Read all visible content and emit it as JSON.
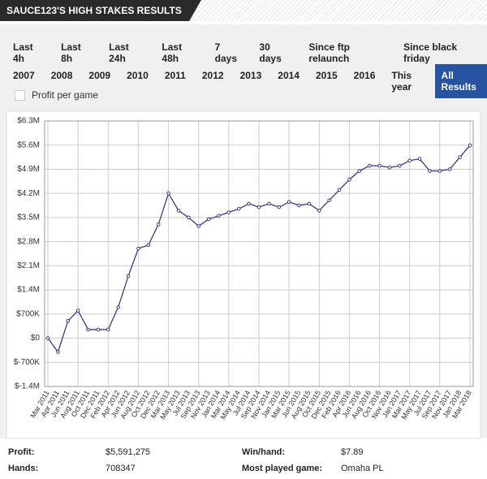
{
  "header": {
    "title": "SAUCE123'S HIGH STAKES RESULTS"
  },
  "filters": {
    "row1": [
      "Last 4h",
      "Last 8h",
      "Last 24h",
      "Last 48h",
      "7 days",
      "30 days",
      "Since ftp relaunch",
      "Since black friday"
    ],
    "row2": [
      "2007",
      "2008",
      "2009",
      "2010",
      "2011",
      "2012",
      "2013",
      "2014",
      "2015",
      "2016",
      "This year",
      "All Results"
    ],
    "checkbox": "Profit per game"
  },
  "chart_data": {
    "type": "line",
    "categories": [
      "Mar 2011",
      "Apr 2011",
      "Jun 2011",
      "Aug 2011",
      "Oct 2011",
      "Dec 2011",
      "Feb 2012",
      "Apr 2012",
      "Jun 2012",
      "Aug 2012",
      "Oct 2012",
      "Dec 2012",
      "Mar 2013",
      "May 2013",
      "Jul 2013",
      "Sep 2013",
      "Nov 2013",
      "Jan 2014",
      "Mar 2014",
      "May 2014",
      "Jul 2014",
      "Sep 2014",
      "Nov 2014",
      "Jan 2015",
      "Mar 2015",
      "Jun 2015",
      "Aug 2015",
      "Oct 2015",
      "Dec 2015",
      "Feb 2016",
      "Apr 2016",
      "Jun 2016",
      "Aug 2016",
      "Oct 2016",
      "Nov 2016",
      "Jan 2017",
      "Mar 2017",
      "May 2017",
      "Jul 2017",
      "Sep 2017",
      "Nov 2017",
      "Jan 2018",
      "Mar 2018"
    ],
    "series": [
      {
        "color": "#3b3b7e",
        "values": [
          0,
          -400000,
          500000,
          800000,
          250000,
          250000,
          250000,
          900000,
          1800000,
          2600000,
          2700000,
          3300000,
          4200000,
          3700000,
          3500000,
          3250000,
          3450000,
          3550000,
          3650000,
          3750000,
          3900000,
          3800000,
          3900000,
          3800000,
          3950000,
          3850000,
          3900000,
          3700000,
          4000000,
          4300000,
          4600000,
          4850000,
          5000000,
          5000000,
          4950000,
          5000000,
          5150000,
          5200000,
          4850000,
          4850000,
          4900000,
          5250000,
          5591275
        ]
      }
    ],
    "ylim": [
      -1400000,
      6300000
    ],
    "yticks": [
      {
        "value": -1400000,
        "label": "$-1.4M"
      },
      {
        "value": -700000,
        "label": "$-700K"
      },
      {
        "value": 0,
        "label": "$0"
      },
      {
        "value": 700000,
        "label": "$700K"
      },
      {
        "value": 1400000,
        "label": "$1.4M"
      },
      {
        "value": 2100000,
        "label": "$2.1M"
      },
      {
        "value": 2800000,
        "label": "$2.8M"
      },
      {
        "value": 3500000,
        "label": "$3.5M"
      },
      {
        "value": 4200000,
        "label": "$4.2M"
      },
      {
        "value": 4900000,
        "label": "$4.9M"
      },
      {
        "value": 5600000,
        "label": "$5.6M"
      },
      {
        "value": 6300000,
        "label": "$6.3M"
      }
    ],
    "grid": true
  },
  "stats": [
    [
      "Profit:",
      "$5,591,275",
      "Win/hand:",
      "$7.89"
    ],
    [
      "Hands:",
      "708347",
      "Most played game:",
      "Omaha PL"
    ]
  ]
}
